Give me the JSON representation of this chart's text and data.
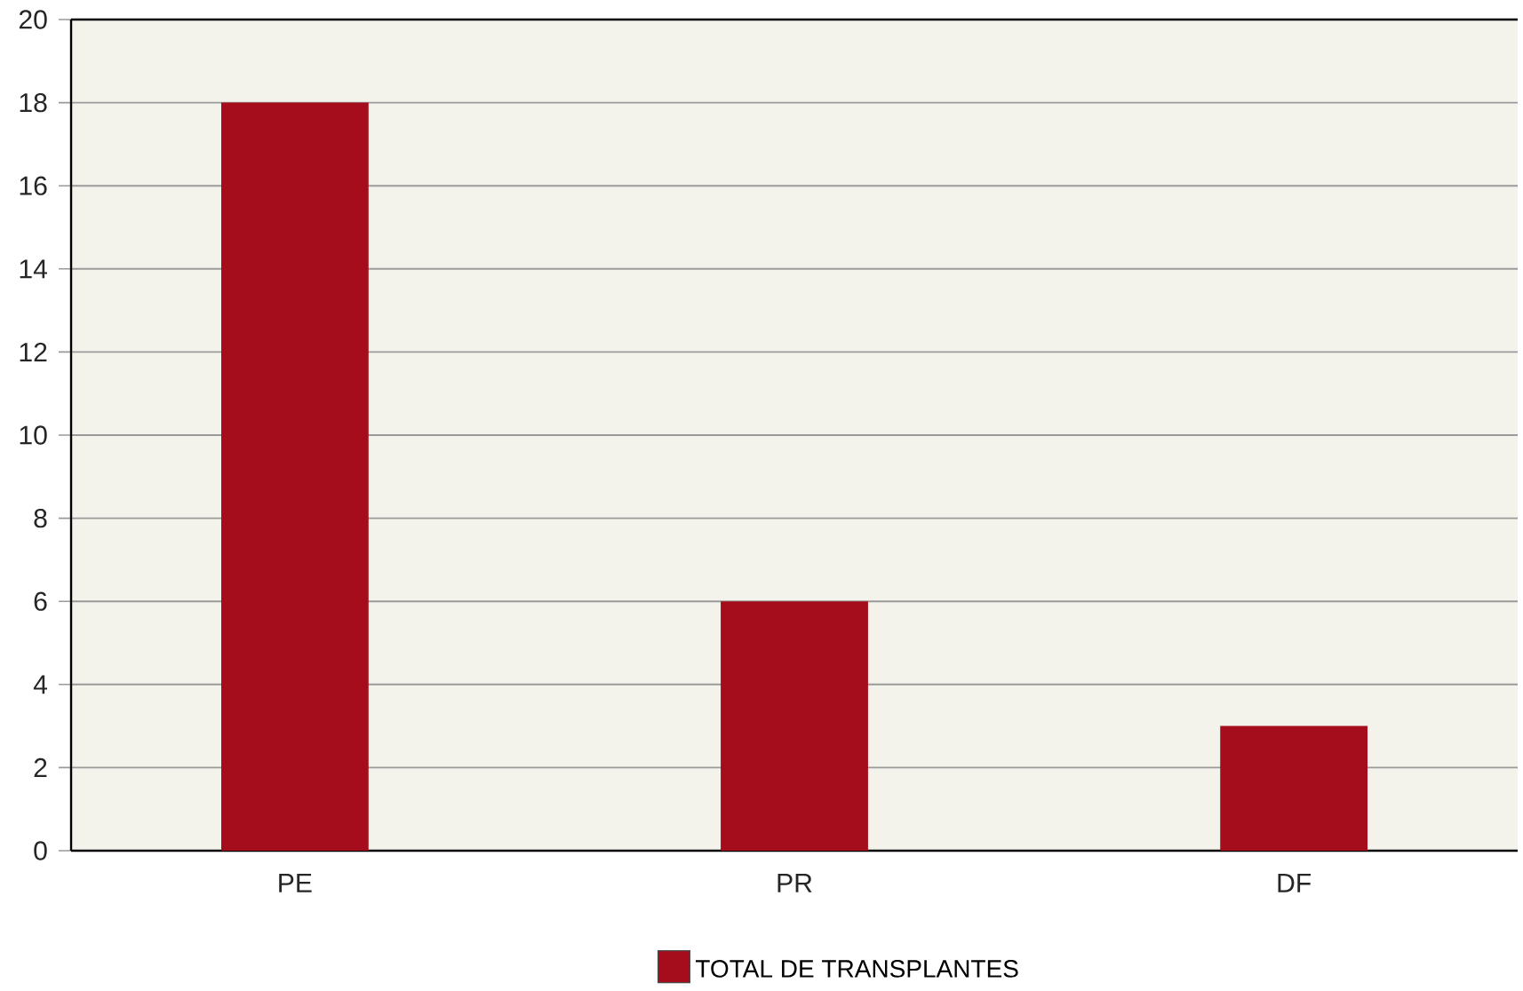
{
  "chart_data": {
    "type": "bar",
    "categories": [
      "PE",
      "PR",
      "DF"
    ],
    "series": [
      {
        "name": "TOTAL DE TRANSPLANTES",
        "color": "#a50d1c",
        "values": [
          18,
          6,
          3
        ]
      }
    ],
    "ylim": [
      0,
      20
    ],
    "yticks": [
      0,
      2,
      4,
      6,
      8,
      10,
      12,
      14,
      16,
      18,
      20
    ],
    "grid": "y",
    "legend": "bottom"
  }
}
